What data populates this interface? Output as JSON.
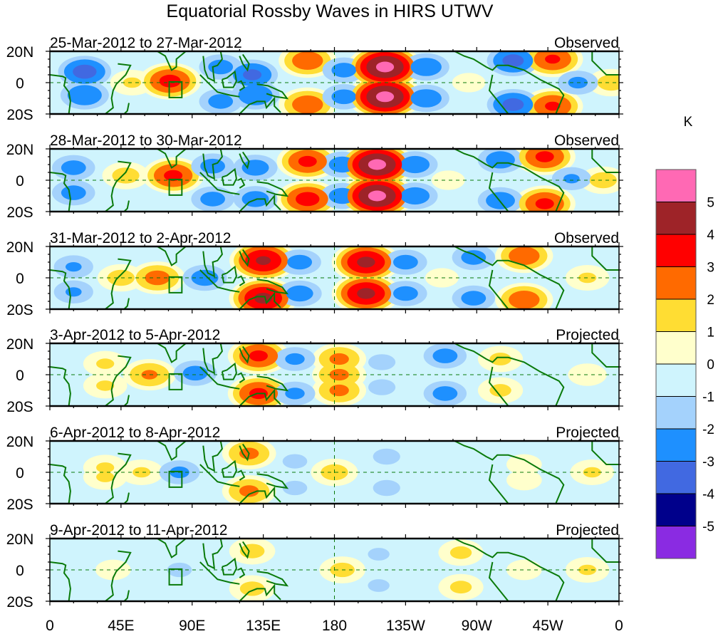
{
  "chart_data": {
    "type": "heatmap",
    "title": "Equatorial Rossby Waves in HIRS UTWV",
    "units_label": "K",
    "x_ticks": [
      "0",
      "45E",
      "90E",
      "135E",
      "180",
      "135W",
      "90W",
      "45W",
      "0"
    ],
    "x_tick_lons": [
      0,
      45,
      90,
      135,
      180,
      225,
      270,
      315,
      360
    ],
    "y_ticks": [
      "20N",
      "0",
      "20S"
    ],
    "y_tick_lats": [
      20,
      0,
      -20
    ],
    "xlim": [
      0,
      360
    ],
    "ylim": [
      -20,
      20
    ],
    "grid": "dashed equator and 180 meridian",
    "colorbar": {
      "position": "right",
      "labels": [
        "5",
        "4",
        "3",
        "2",
        "1",
        "0",
        "-1",
        "-2",
        "-3",
        "-4",
        "-5"
      ],
      "bins": [
        {
          "min": 5,
          "color": "#ff69b4"
        },
        {
          "min": 4,
          "max": 5,
          "color": "#9e2328"
        },
        {
          "min": 3,
          "max": 4,
          "color": "#ff0000"
        },
        {
          "min": 2,
          "max": 3,
          "color": "#ff6a00"
        },
        {
          "min": 1,
          "max": 2,
          "color": "#ffdd33"
        },
        {
          "min": 0,
          "max": 1,
          "color": "#ffffcc"
        },
        {
          "min": -1,
          "max": 0,
          "color": "#cff4fd"
        },
        {
          "min": -2,
          "max": -1,
          "color": "#a4d2fc"
        },
        {
          "min": -3,
          "max": -2,
          "color": "#1e90ff"
        },
        {
          "min": -4,
          "max": -3,
          "color": "#4169e1"
        },
        {
          "min": -5,
          "max": -4,
          "color": "#00008b"
        },
        {
          "max": -5,
          "color": "#8a2be2"
        }
      ]
    },
    "panels": [
      {
        "date_range": "25-Mar-2012 to 27-Mar-2012",
        "status": "Observed",
        "anomalies": [
          {
            "lon": 22,
            "lat": 7,
            "value": -3.5
          },
          {
            "lon": 22,
            "lat": -8,
            "value": -3
          },
          {
            "lon": 52,
            "lat": 0,
            "value": 1.2
          },
          {
            "lon": 76,
            "lat": 1,
            "value": 3.4
          },
          {
            "lon": 108,
            "lat": 10,
            "value": -2.5
          },
          {
            "lon": 108,
            "lat": -12,
            "value": -2.5
          },
          {
            "lon": 128,
            "lat": 5,
            "value": -3.3
          },
          {
            "lon": 130,
            "lat": -8,
            "value": -3
          },
          {
            "lon": 163,
            "lat": 14,
            "value": 2.8
          },
          {
            "lon": 163,
            "lat": -14,
            "value": 2.8
          },
          {
            "lon": 186,
            "lat": 8,
            "value": -2.5
          },
          {
            "lon": 186,
            "lat": -9,
            "value": -2.5
          },
          {
            "lon": 212,
            "lat": 10,
            "value": 5.3
          },
          {
            "lon": 212,
            "lat": -9,
            "value": 5.3
          },
          {
            "lon": 238,
            "lat": 10,
            "value": -2.8
          },
          {
            "lon": 238,
            "lat": -10,
            "value": -2.8
          },
          {
            "lon": 265,
            "lat": 0,
            "value": 0.5
          },
          {
            "lon": 293,
            "lat": 14,
            "value": -3.4
          },
          {
            "lon": 293,
            "lat": -14,
            "value": -3.4
          },
          {
            "lon": 318,
            "lat": 15,
            "value": 3.2
          },
          {
            "lon": 318,
            "lat": -15,
            "value": 3.2
          },
          {
            "lon": 334,
            "lat": 0,
            "value": -2.3
          },
          {
            "lon": 355,
            "lat": 0,
            "value": 1.5
          }
        ]
      },
      {
        "date_range": "28-Mar-2012 to 30-Mar-2012",
        "status": "Observed",
        "anomalies": [
          {
            "lon": 15,
            "lat": 8,
            "value": -2.5
          },
          {
            "lon": 15,
            "lat": -8,
            "value": -2.5
          },
          {
            "lon": 48,
            "lat": 3,
            "value": 1.5
          },
          {
            "lon": 78,
            "lat": 3,
            "value": 3.3
          },
          {
            "lon": 103,
            "lat": 9,
            "value": -2.5
          },
          {
            "lon": 103,
            "lat": -12,
            "value": -2.5
          },
          {
            "lon": 130,
            "lat": 8,
            "value": -2.6
          },
          {
            "lon": 130,
            "lat": -12,
            "value": -2.6
          },
          {
            "lon": 163,
            "lat": 12,
            "value": 3.3
          },
          {
            "lon": 163,
            "lat": -12,
            "value": 3.5
          },
          {
            "lon": 185,
            "lat": 10,
            "value": -2.6
          },
          {
            "lon": 185,
            "lat": -10,
            "value": -2.6
          },
          {
            "lon": 207,
            "lat": 10,
            "value": 5.3
          },
          {
            "lon": 207,
            "lat": -10,
            "value": 5.3
          },
          {
            "lon": 231,
            "lat": 10,
            "value": -2.7
          },
          {
            "lon": 231,
            "lat": -10,
            "value": -2.7
          },
          {
            "lon": 252,
            "lat": 0,
            "value": 0.5
          },
          {
            "lon": 285,
            "lat": 13,
            "value": -2.7
          },
          {
            "lon": 285,
            "lat": -13,
            "value": -2.7
          },
          {
            "lon": 313,
            "lat": 15,
            "value": 3.3
          },
          {
            "lon": 313,
            "lat": -15,
            "value": 3.3
          },
          {
            "lon": 330,
            "lat": 1,
            "value": -2.2
          },
          {
            "lon": 350,
            "lat": 0,
            "value": 1.5
          }
        ]
      },
      {
        "date_range": "31-Mar-2012 to 2-Apr-2012",
        "status": "Observed",
        "anomalies": [
          {
            "lon": 15,
            "lat": 7,
            "value": -2.2
          },
          {
            "lon": 15,
            "lat": -9,
            "value": -2.2
          },
          {
            "lon": 45,
            "lat": 0,
            "value": 1.5
          },
          {
            "lon": 68,
            "lat": 0,
            "value": 2.5
          },
          {
            "lon": 98,
            "lat": 0,
            "value": -2.6
          },
          {
            "lon": 135,
            "lat": 11,
            "value": 4.2
          },
          {
            "lon": 135,
            "lat": -13,
            "value": 4.3
          },
          {
            "lon": 158,
            "lat": 10,
            "value": -2.5
          },
          {
            "lon": 158,
            "lat": -10,
            "value": -2.6
          },
          {
            "lon": 200,
            "lat": 10,
            "value": 4.3
          },
          {
            "lon": 200,
            "lat": -10,
            "value": 4.3
          },
          {
            "lon": 225,
            "lat": 10,
            "value": -2.5
          },
          {
            "lon": 225,
            "lat": -10,
            "value": -2.5
          },
          {
            "lon": 248,
            "lat": 0,
            "value": 0.5
          },
          {
            "lon": 268,
            "lat": 13,
            "value": -2.5
          },
          {
            "lon": 268,
            "lat": -13,
            "value": -2.5
          },
          {
            "lon": 300,
            "lat": 14,
            "value": 2.8
          },
          {
            "lon": 300,
            "lat": -14,
            "value": 2.8
          },
          {
            "lon": 340,
            "lat": 0,
            "value": 1.2
          }
        ]
      },
      {
        "date_range": "3-Apr-2012 to 5-Apr-2012",
        "status": "Projected",
        "anomalies": [
          {
            "lon": 35,
            "lat": 7,
            "value": 1.2
          },
          {
            "lon": 35,
            "lat": -7,
            "value": 1.2
          },
          {
            "lon": 63,
            "lat": 0,
            "value": 2.2
          },
          {
            "lon": 92,
            "lat": 1,
            "value": -2.5
          },
          {
            "lon": 132,
            "lat": 12,
            "value": 3.3
          },
          {
            "lon": 132,
            "lat": -12,
            "value": 3.3
          },
          {
            "lon": 155,
            "lat": 10,
            "value": -2.3
          },
          {
            "lon": 155,
            "lat": -12,
            "value": -2.3
          },
          {
            "lon": 183,
            "lat": 10,
            "value": 2.3
          },
          {
            "lon": 183,
            "lat": 0,
            "value": 2.3
          },
          {
            "lon": 183,
            "lat": -10,
            "value": 2.3
          },
          {
            "lon": 210,
            "lat": 8,
            "value": -1.5
          },
          {
            "lon": 210,
            "lat": -8,
            "value": -1.5
          },
          {
            "lon": 250,
            "lat": 12,
            "value": -2.5
          },
          {
            "lon": 250,
            "lat": -12,
            "value": -2.5
          },
          {
            "lon": 285,
            "lat": 10,
            "value": 1.3
          },
          {
            "lon": 285,
            "lat": -10,
            "value": 1.3
          },
          {
            "lon": 340,
            "lat": 0,
            "value": 0.8
          }
        ]
      },
      {
        "date_range": "6-Apr-2012 to 8-Apr-2012",
        "status": "Projected",
        "anomalies": [
          {
            "lon": 35,
            "lat": 3,
            "value": 1.2
          },
          {
            "lon": 35,
            "lat": -3,
            "value": 1.2
          },
          {
            "lon": 58,
            "lat": 0,
            "value": 1.2
          },
          {
            "lon": 82,
            "lat": 0,
            "value": -2.3
          },
          {
            "lon": 126,
            "lat": 12,
            "value": 2.3
          },
          {
            "lon": 126,
            "lat": -12,
            "value": 2.3
          },
          {
            "lon": 155,
            "lat": 7,
            "value": -1.4
          },
          {
            "lon": 155,
            "lat": -10,
            "value": -1.4
          },
          {
            "lon": 180,
            "lat": 0,
            "value": 1.5
          },
          {
            "lon": 213,
            "lat": 10,
            "value": -1.5
          },
          {
            "lon": 213,
            "lat": -10,
            "value": -1.5
          },
          {
            "lon": 300,
            "lat": 5,
            "value": 0.6
          },
          {
            "lon": 300,
            "lat": -5,
            "value": 0.6
          },
          {
            "lon": 343,
            "lat": 0,
            "value": 1.2
          }
        ]
      },
      {
        "date_range": "9-Apr-2012 to 11-Apr-2012",
        "status": "Projected",
        "anomalies": [
          {
            "lon": 40,
            "lat": 0,
            "value": 0.6
          },
          {
            "lon": 82,
            "lat": 0,
            "value": -1.4
          },
          {
            "lon": 128,
            "lat": 12,
            "value": 1.4
          },
          {
            "lon": 128,
            "lat": -12,
            "value": 1.4
          },
          {
            "lon": 150,
            "lat": 0,
            "value": -0.6
          },
          {
            "lon": 185,
            "lat": 0,
            "value": 1.4
          },
          {
            "lon": 208,
            "lat": 10,
            "value": -1.3
          },
          {
            "lon": 208,
            "lat": -10,
            "value": -1.3
          },
          {
            "lon": 260,
            "lat": 11,
            "value": 1.3
          },
          {
            "lon": 260,
            "lat": -11,
            "value": 1.3
          },
          {
            "lon": 300,
            "lat": 0,
            "value": 0.6
          },
          {
            "lon": 340,
            "lat": 0,
            "value": 1.2
          }
        ]
      }
    ]
  }
}
